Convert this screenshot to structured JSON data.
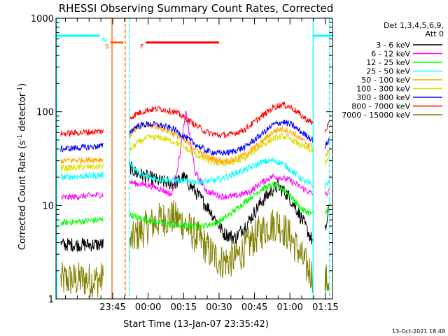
{
  "chart_data": {
    "type": "line",
    "title": "RHESSI Observing Summary Count Rates, Corrected",
    "xlabel": "Start Time (13-Jan-07 23:35:42)",
    "ylabel_parts": [
      "Corrected Count Rate (s",
      "-1",
      " detector",
      "-1",
      ")"
    ],
    "y_scale": "log",
    "ylim": [
      1,
      1000
    ],
    "y_ticks": [
      {
        "v": 1,
        "label": "1"
      },
      {
        "v": 10,
        "label": "10"
      },
      {
        "v": 100,
        "label": "100"
      },
      {
        "v": 1000,
        "label": "1000"
      }
    ],
    "xlim_minutes": [
      -14,
      103
    ],
    "x_ticks": [
      {
        "t": 10,
        "label": "23:45"
      },
      {
        "t": 25,
        "label": "00:00"
      },
      {
        "t": 40,
        "label": "00:15"
      },
      {
        "t": 55,
        "label": "00:30"
      },
      {
        "t": 70,
        "label": "00:45"
      },
      {
        "t": 85,
        "label": "01:00"
      },
      {
        "t": 100,
        "label": "01:15"
      }
    ],
    "x_tick_units": "minutes after 23:35:00 on 13-Jan-07",
    "legend_header": [
      "Det 1,3,4,5,6,9,",
      "Att 0"
    ],
    "legend_location": "right",
    "footer_date": "13-Oct-2021 18:48",
    "gaps_minutes": [
      [
        6,
        17
      ],
      [
        94.8,
        99.8
      ]
    ],
    "series": [
      {
        "name": "3 - 6 keV",
        "color": "#000000",
        "pre": {
          "t": [
            -12,
            6
          ],
          "v": [
            3.8,
            3.8
          ]
        },
        "d1": {
          "t": [
            17,
            20,
            25,
            30,
            36,
            40,
            45,
            51,
            57,
            62,
            68,
            73,
            78,
            80,
            84,
            88,
            93,
            94.8
          ],
          "v": [
            26,
            22,
            20,
            18,
            17,
            20,
            14,
            9,
            5,
            4.5,
            7,
            11,
            15,
            16,
            13,
            9,
            5,
            4
          ]
        },
        "d2": {
          "t": [
            99.8,
            101.5
          ],
          "v": [
            5,
            9
          ]
        }
      },
      {
        "name": "6 - 12 keV",
        "color": "#ff00ff",
        "pre": {
          "t": [
            -12,
            6
          ],
          "v": [
            12,
            13
          ]
        },
        "d1": {
          "t": [
            17,
            20,
            25,
            30,
            35,
            38,
            41,
            45,
            50,
            56,
            62,
            68,
            73,
            78,
            84,
            89,
            94.8
          ],
          "v": [
            18,
            17,
            16.5,
            15,
            13,
            30,
            100,
            22,
            14,
            12.5,
            12.5,
            14,
            17.5,
            20.5,
            19,
            16,
            13
          ]
        },
        "d2": {
          "t": [
            99.8,
            101.5
          ],
          "v": [
            13,
            14
          ]
        }
      },
      {
        "name": "12 - 25 keV",
        "color": "#00ff00",
        "pre": {
          "t": [
            -12,
            6
          ],
          "v": [
            6.5,
            7
          ]
        },
        "d1": {
          "t": [
            17,
            20,
            25,
            30,
            36,
            42,
            48,
            54,
            58,
            62,
            68,
            73,
            78,
            82,
            86,
            90,
            94.8
          ],
          "v": [
            8,
            7.5,
            7,
            6.5,
            6.2,
            6,
            6,
            6.5,
            7.5,
            9,
            12,
            15,
            16.5,
            15,
            12,
            9,
            8
          ]
        },
        "d2": {
          "t": [
            99.8,
            101.5
          ],
          "v": [
            8,
            10
          ]
        }
      },
      {
        "name": "25 - 50 keV",
        "color": "#00ffff",
        "pre": {
          "t": [
            -12,
            6
          ],
          "v": [
            20,
            21
          ]
        },
        "d1": {
          "t": [
            17,
            19,
            21,
            25,
            30,
            36,
            42,
            48,
            54,
            58,
            62,
            68,
            73,
            78,
            82,
            86,
            90,
            94.8
          ],
          "v": [
            30,
            25,
            22,
            20,
            19,
            18.5,
            18,
            18,
            18.5,
            20,
            22,
            25,
            29,
            30,
            28,
            23,
            19,
            16
          ]
        },
        "d2": {
          "t": [
            99.8,
            101.5
          ],
          "v": [
            16,
            18
          ]
        }
      },
      {
        "name": "50 - 100 keV",
        "color": "#ffaa00",
        "pre": {
          "t": [
            -12,
            6
          ],
          "v": [
            30,
            31
          ]
        },
        "d1": {
          "t": [
            17,
            20,
            25,
            30,
            36,
            40,
            45,
            50,
            55,
            60,
            66,
            72,
            78,
            82,
            86,
            90,
            94.8
          ],
          "v": [
            55,
            68,
            72,
            68,
            58,
            50,
            40,
            33,
            30,
            30,
            35,
            45,
            62,
            66,
            60,
            50,
            42
          ]
        },
        "d2": {
          "t": [
            99.8,
            101.5
          ],
          "v": [
            33,
            38
          ]
        }
      },
      {
        "name": "100 - 300 keV",
        "color": "#dddd00",
        "pre": {
          "t": [
            -12,
            6
          ],
          "v": [
            25,
            26
          ]
        },
        "d1": {
          "t": [
            17,
            20,
            25,
            30,
            36,
            40,
            45,
            50,
            55,
            60,
            66,
            72,
            78,
            82,
            86,
            90,
            94.8
          ],
          "v": [
            37,
            46,
            53,
            53,
            48,
            42,
            35,
            30,
            28,
            28,
            32,
            42,
            52,
            55,
            50,
            43,
            38
          ]
        },
        "d2": {
          "t": [
            99.8,
            101.5
          ],
          "v": [
            28,
            32
          ]
        }
      },
      {
        "name": "300 - 800 keV",
        "color": "#0000ff",
        "pre": {
          "t": [
            -12,
            6
          ],
          "v": [
            40,
            43
          ]
        },
        "d1": {
          "t": [
            17,
            20,
            25,
            30,
            36,
            40,
            45,
            50,
            55,
            60,
            66,
            72,
            78,
            82,
            86,
            90,
            94.8
          ],
          "v": [
            60,
            70,
            74,
            72,
            65,
            55,
            45,
            38,
            36,
            37,
            42,
            55,
            73,
            78,
            72,
            60,
            50
          ]
        },
        "d2": {
          "t": [
            99.8,
            101.5
          ],
          "v": [
            42,
            50
          ]
        }
      },
      {
        "name": "800 - 7000 keV",
        "color": "#ff0000",
        "pre": {
          "t": [
            -12,
            6
          ],
          "v": [
            58,
            62
          ]
        },
        "d1": {
          "t": [
            17,
            20,
            25,
            30,
            36,
            40,
            45,
            50,
            55,
            60,
            66,
            72,
            78,
            82,
            86,
            90,
            94.8
          ],
          "v": [
            85,
            95,
            105,
            108,
            100,
            88,
            72,
            60,
            56,
            57,
            65,
            85,
            112,
            120,
            110,
            90,
            75
          ]
        },
        "d2": {
          "t": [
            99.8,
            101.5
          ],
          "v": [
            62,
            75
          ]
        }
      },
      {
        "name": "7000 - 15000 keV",
        "color": "#808000",
        "pre": {
          "t": [
            -12,
            6
          ],
          "v": [
            1.6,
            1.6
          ]
        },
        "d1": {
          "t": [
            17,
            20,
            25,
            30,
            35,
            40,
            44,
            48,
            52,
            56,
            60,
            64,
            68,
            72,
            76,
            80,
            84,
            88,
            92,
            94.8
          ],
          "v": [
            3.8,
            4.8,
            6,
            7,
            7.5,
            6.5,
            5,
            4,
            3,
            2.5,
            2.6,
            3,
            4,
            5,
            6,
            6.5,
            5,
            3.5,
            2.2,
            1.8
          ]
        },
        "d2": {
          "t": [
            99.8,
            101.5
          ],
          "v": [
            1.5,
            1.6
          ]
        }
      }
    ],
    "markers": [
      {
        "name": "S",
        "color": "#ff6600",
        "t": [
          9,
          14.5
        ],
        "v": 550,
        "label_at": "left"
      },
      {
        "name": "F",
        "color": "#ff0000",
        "t": [
          24,
          55
        ],
        "v": 550,
        "label_at": "left"
      },
      {
        "name": "N",
        "color": "#00ffff",
        "t": [
          -14,
          4.5
        ],
        "v": 650,
        "extra": [
          [
            94.8,
            103
          ]
        ],
        "label_at": "right"
      }
    ],
    "vertical_lines": [
      {
        "t": -13.7,
        "color": "#00ffff",
        "style": "solid"
      },
      {
        "t": 9.7,
        "color": "#ff6600",
        "style": "solid"
      },
      {
        "t": 15.3,
        "color": "#ff6600",
        "style": "dashed"
      },
      {
        "t": 17.1,
        "color": "#00ffff",
        "style": "dashed"
      },
      {
        "t": 94.8,
        "color": "#00ffff",
        "style": "solid"
      },
      {
        "t": 101.7,
        "color": "#00ffff",
        "style": "dashed"
      }
    ]
  }
}
